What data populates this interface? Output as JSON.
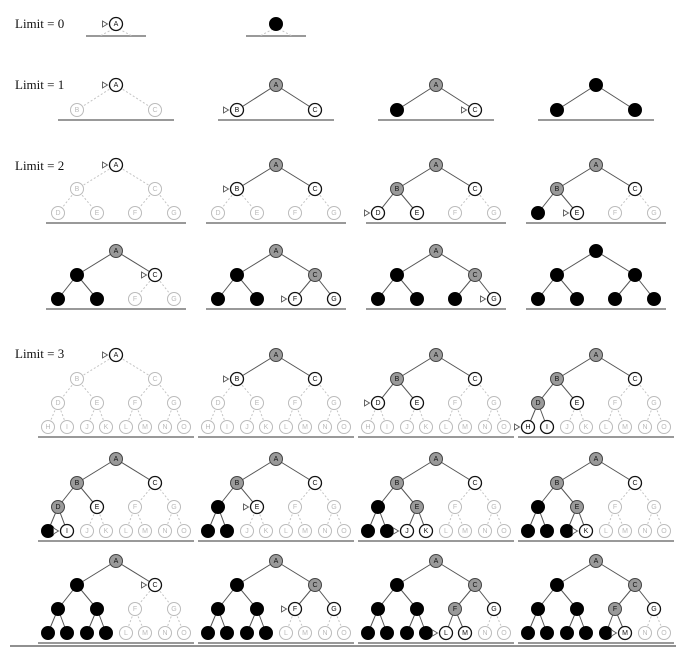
{
  "legend_states": {
    "unexplored": {
      "fill": "#ffffff",
      "stroke": "#bbbbbb",
      "text": "#bbbbbb",
      "edge": "#c4c4c4",
      "dashed": true
    },
    "expanded": {
      "fill": "#9a9a9a",
      "stroke": "#444444",
      "text": "#111111",
      "edge": "#555555",
      "dashed": false
    },
    "frontier": {
      "fill": "#ffffff",
      "stroke": "#111111",
      "text": "#111111",
      "edge": "#555555",
      "dashed": false
    },
    "removed": {
      "fill": "#000000",
      "stroke": "#000000",
      "text": "#000000",
      "edge": "#555555",
      "dashed": false
    },
    "ground_color": "#999999",
    "marker_color": "#555555"
  },
  "node_labels": [
    "A",
    "B",
    "C",
    "D",
    "E",
    "F",
    "G",
    "H",
    "I",
    "J",
    "K",
    "L",
    "M",
    "N",
    "O"
  ],
  "sections": [
    {
      "label": "Limit = 0",
      "depth": 0,
      "rows": [
        [
          {
            "frontier": [
              "A"
            ],
            "expanded": [],
            "removed": [],
            "marker": "A"
          },
          {
            "frontier": [],
            "expanded": [],
            "removed": [
              "A"
            ],
            "marker": null
          }
        ]
      ]
    },
    {
      "label": "Limit = 1",
      "depth": 1,
      "rows": [
        [
          {
            "frontier": [
              "A"
            ],
            "expanded": [],
            "removed": [],
            "marker": "A"
          },
          {
            "frontier": [
              "B",
              "C"
            ],
            "expanded": [
              "A"
            ],
            "removed": [],
            "marker": "B"
          },
          {
            "frontier": [
              "C"
            ],
            "expanded": [
              "A"
            ],
            "removed": [
              "B"
            ],
            "marker": "C"
          },
          {
            "frontier": [],
            "expanded": [],
            "removed": [
              "A",
              "B",
              "C"
            ],
            "marker": null
          }
        ]
      ]
    },
    {
      "label": "Limit = 2",
      "depth": 2,
      "rows": [
        [
          {
            "frontier": [
              "A"
            ],
            "expanded": [],
            "removed": [],
            "marker": "A"
          },
          {
            "frontier": [
              "B",
              "C"
            ],
            "expanded": [
              "A"
            ],
            "removed": [],
            "marker": "B"
          },
          {
            "frontier": [
              "C",
              "D",
              "E"
            ],
            "expanded": [
              "A",
              "B"
            ],
            "removed": [],
            "marker": "D"
          },
          {
            "frontier": [
              "C",
              "E"
            ],
            "expanded": [
              "A",
              "B"
            ],
            "removed": [
              "D"
            ],
            "marker": "E"
          }
        ],
        [
          {
            "frontier": [
              "C"
            ],
            "expanded": [
              "A"
            ],
            "removed": [
              "B",
              "D",
              "E"
            ],
            "marker": "C"
          },
          {
            "frontier": [
              "F",
              "G"
            ],
            "expanded": [
              "A",
              "C"
            ],
            "removed": [
              "B",
              "D",
              "E"
            ],
            "marker": "F"
          },
          {
            "frontier": [
              "G"
            ],
            "expanded": [
              "A",
              "C"
            ],
            "removed": [
              "B",
              "D",
              "E",
              "F"
            ],
            "marker": "G"
          },
          {
            "frontier": [],
            "expanded": [],
            "removed": [
              "A",
              "B",
              "C",
              "D",
              "E",
              "F",
              "G"
            ],
            "marker": null
          }
        ]
      ]
    },
    {
      "label": "Limit = 3",
      "depth": 3,
      "rows": [
        [
          {
            "frontier": [
              "A"
            ],
            "expanded": [],
            "removed": [],
            "marker": "A"
          },
          {
            "frontier": [
              "B",
              "C"
            ],
            "expanded": [
              "A"
            ],
            "removed": [],
            "marker": "B"
          },
          {
            "frontier": [
              "C",
              "D",
              "E"
            ],
            "expanded": [
              "A",
              "B"
            ],
            "removed": [],
            "marker": "D"
          },
          {
            "frontier": [
              "C",
              "E",
              "H",
              "I"
            ],
            "expanded": [
              "A",
              "B",
              "D"
            ],
            "removed": [],
            "marker": "H"
          }
        ],
        [
          {
            "frontier": [
              "C",
              "E",
              "I"
            ],
            "expanded": [
              "A",
              "B",
              "D"
            ],
            "removed": [
              "H"
            ],
            "marker": "I"
          },
          {
            "frontier": [
              "C",
              "E"
            ],
            "expanded": [
              "A",
              "B"
            ],
            "removed": [
              "D",
              "H",
              "I"
            ],
            "marker": "E"
          },
          {
            "frontier": [
              "C",
              "J",
              "K"
            ],
            "expanded": [
              "A",
              "B",
              "E"
            ],
            "removed": [
              "D",
              "H",
              "I"
            ],
            "marker": "J"
          },
          {
            "frontier": [
              "C",
              "K"
            ],
            "expanded": [
              "A",
              "B",
              "E"
            ],
            "removed": [
              "D",
              "H",
              "I",
              "J"
            ],
            "marker": "K"
          }
        ],
        [
          {
            "frontier": [
              "C"
            ],
            "expanded": [
              "A"
            ],
            "removed": [
              "B",
              "D",
              "E",
              "H",
              "I",
              "J",
              "K"
            ],
            "marker": "C"
          },
          {
            "frontier": [
              "F",
              "G"
            ],
            "expanded": [
              "A",
              "C"
            ],
            "removed": [
              "B",
              "D",
              "E",
              "H",
              "I",
              "J",
              "K"
            ],
            "marker": "F"
          },
          {
            "frontier": [
              "G",
              "L",
              "M"
            ],
            "expanded": [
              "A",
              "C",
              "F"
            ],
            "removed": [
              "B",
              "D",
              "E",
              "H",
              "I",
              "J",
              "K"
            ],
            "marker": "L"
          },
          {
            "frontier": [
              "G",
              "M"
            ],
            "expanded": [
              "A",
              "C",
              "F"
            ],
            "removed": [
              "B",
              "D",
              "E",
              "H",
              "I",
              "J",
              "K",
              "L"
            ],
            "marker": "M"
          }
        ]
      ]
    }
  ]
}
